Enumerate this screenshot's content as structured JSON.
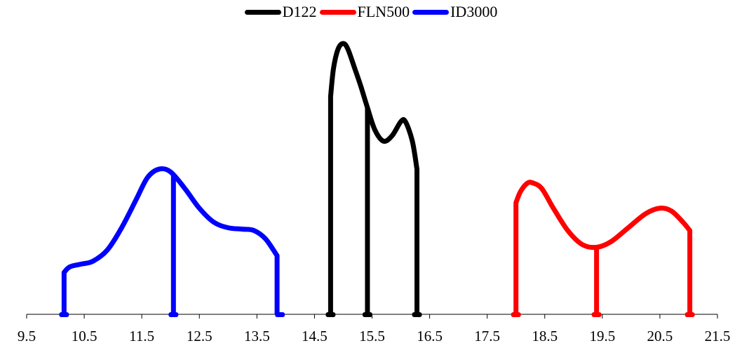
{
  "chart_data": {
    "type": "line",
    "title": "",
    "xlabel": "",
    "ylabel": "",
    "xlim": [
      9.5,
      21.5
    ],
    "y_axis_visible": false,
    "grid": false,
    "legend_position": "top-center",
    "x_tick_labels": [
      "9.5",
      "10.5",
      "11.5",
      "12.5",
      "13.5",
      "14.5",
      "15.5",
      "16.5",
      "17.5",
      "18.5",
      "19.5",
      "20.5",
      "21.5"
    ],
    "series": [
      {
        "name": "D122",
        "color": "#000000",
        "curve": [
          [
            14.78,
            0.78
          ],
          [
            14.83,
            0.88
          ],
          [
            14.91,
            0.95
          ],
          [
            15.0,
            0.97
          ],
          [
            15.08,
            0.95
          ],
          [
            15.2,
            0.88
          ],
          [
            15.3,
            0.82
          ],
          [
            15.42,
            0.74
          ],
          [
            15.55,
            0.66
          ],
          [
            15.7,
            0.62
          ],
          [
            15.85,
            0.64
          ],
          [
            16.0,
            0.69
          ],
          [
            16.08,
            0.69
          ],
          [
            16.2,
            0.62
          ],
          [
            16.28,
            0.52
          ]
        ],
        "markers": [
          14.78,
          15.42,
          16.28
        ]
      },
      {
        "name": "FLN500",
        "color": "#ff0000",
        "curve": [
          [
            18.0,
            0.4
          ],
          [
            18.08,
            0.44
          ],
          [
            18.2,
            0.47
          ],
          [
            18.3,
            0.47
          ],
          [
            18.45,
            0.45
          ],
          [
            18.65,
            0.38
          ],
          [
            18.9,
            0.3
          ],
          [
            19.15,
            0.25
          ],
          [
            19.4,
            0.24
          ],
          [
            19.65,
            0.26
          ],
          [
            19.95,
            0.31
          ],
          [
            20.25,
            0.36
          ],
          [
            20.5,
            0.38
          ],
          [
            20.7,
            0.37
          ],
          [
            20.9,
            0.33
          ],
          [
            21.02,
            0.3
          ]
        ],
        "markers": [
          18.0,
          19.4,
          21.02
        ]
      },
      {
        "name": "ID3000",
        "color": "#0000ff",
        "curve": [
          [
            10.15,
            0.15
          ],
          [
            10.25,
            0.17
          ],
          [
            10.45,
            0.18
          ],
          [
            10.65,
            0.19
          ],
          [
            10.9,
            0.23
          ],
          [
            11.15,
            0.31
          ],
          [
            11.4,
            0.41
          ],
          [
            11.6,
            0.49
          ],
          [
            11.8,
            0.52
          ],
          [
            12.0,
            0.51
          ],
          [
            12.25,
            0.45
          ],
          [
            12.5,
            0.38
          ],
          [
            12.75,
            0.33
          ],
          [
            13.0,
            0.31
          ],
          [
            13.25,
            0.305
          ],
          [
            13.45,
            0.3
          ],
          [
            13.65,
            0.27
          ],
          [
            13.85,
            0.21
          ]
        ],
        "markers": [
          10.15,
          12.05,
          13.9
        ]
      }
    ]
  }
}
